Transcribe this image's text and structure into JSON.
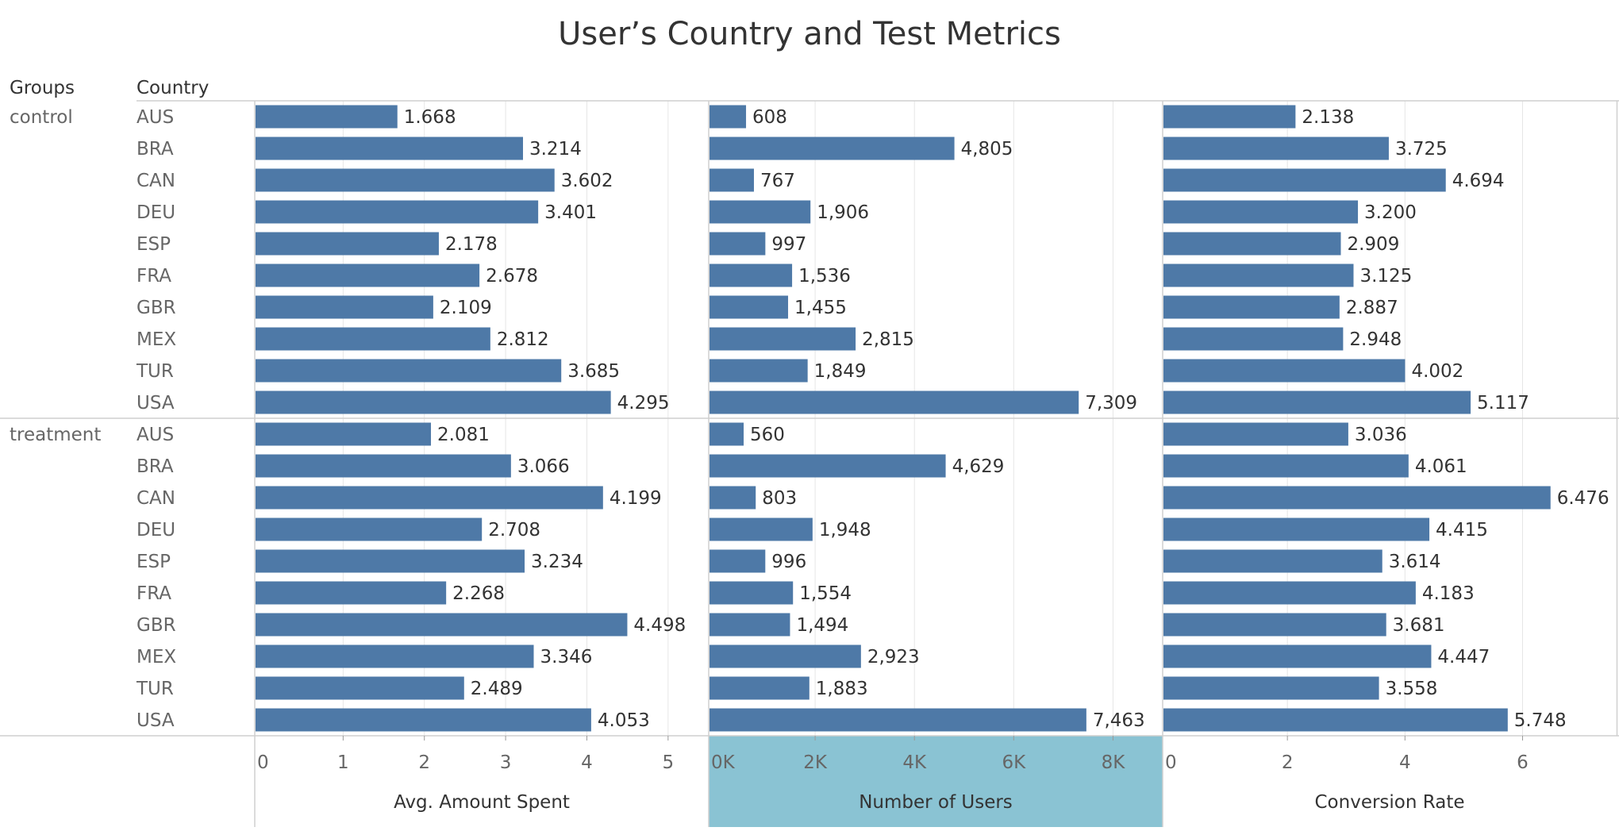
{
  "chart_data": {
    "type": "bar",
    "title": "User’s Country and Test Metrics",
    "row_headers": {
      "groups": "Groups",
      "country": "Country"
    },
    "groups": [
      "control",
      "treatment"
    ],
    "categories": [
      "AUS",
      "BRA",
      "CAN",
      "DEU",
      "ESP",
      "FRA",
      "GBR",
      "MEX",
      "TUR",
      "USA"
    ],
    "bar_color": "#4e79a7",
    "highlight_color": "#8ac3d3",
    "panels": [
      {
        "name": "Avg. Amount Spent",
        "xlim": [
          0,
          5.5
        ],
        "ticks": [
          {
            "v": 0,
            "label": "0"
          },
          {
            "v": 1,
            "label": "1"
          },
          {
            "v": 2,
            "label": "2"
          },
          {
            "v": 3,
            "label": "3"
          },
          {
            "v": 4,
            "label": "4"
          },
          {
            "v": 5,
            "label": "5"
          }
        ],
        "values": {
          "control": [
            1.668,
            3.214,
            3.602,
            3.401,
            2.178,
            2.678,
            2.109,
            2.812,
            3.685,
            4.295
          ],
          "treatment": [
            2.081,
            3.066,
            4.199,
            2.708,
            3.234,
            2.268,
            4.498,
            3.346,
            2.489,
            4.053
          ]
        },
        "labels": {
          "control": [
            "1.668",
            "3.214",
            "3.602",
            "3.401",
            "2.178",
            "2.678",
            "2.109",
            "2.812",
            "3.685",
            "4.295"
          ],
          "treatment": [
            "2.081",
            "3.066",
            "4.199",
            "2.708",
            "3.234",
            "2.268",
            "4.498",
            "3.346",
            "2.489",
            "4.053"
          ]
        },
        "highlighted": false
      },
      {
        "name": "Number of Users",
        "xlim": [
          0,
          9000
        ],
        "ticks": [
          {
            "v": 0,
            "label": "0K"
          },
          {
            "v": 2000,
            "label": "2K"
          },
          {
            "v": 4000,
            "label": "4K"
          },
          {
            "v": 6000,
            "label": "6K"
          },
          {
            "v": 8000,
            "label": "8K"
          }
        ],
        "values": {
          "control": [
            608,
            4805,
            767,
            1906,
            997,
            1536,
            1455,
            2815,
            1849,
            7309
          ],
          "treatment": [
            560,
            4629,
            803,
            1948,
            996,
            1554,
            1494,
            2923,
            1883,
            7463
          ]
        },
        "labels": {
          "control": [
            "608",
            "4,805",
            "767",
            "1,906",
            "997",
            "1,536",
            "1,455",
            "2,815",
            "1,849",
            "7,309"
          ],
          "treatment": [
            "560",
            "4,629",
            "803",
            "1,948",
            "996",
            "1,554",
            "1,494",
            "2,923",
            "1,883",
            "7,463"
          ]
        },
        "highlighted": true
      },
      {
        "name": "Conversion Rate",
        "xlim": [
          0,
          7.6
        ],
        "ticks": [
          {
            "v": 0,
            "label": "0"
          },
          {
            "v": 2,
            "label": "2"
          },
          {
            "v": 4,
            "label": "4"
          },
          {
            "v": 6,
            "label": "6"
          }
        ],
        "values": {
          "control": [
            2.138,
            3.725,
            4.694,
            3.2,
            2.909,
            3.125,
            2.887,
            2.948,
            4.002,
            5.117
          ],
          "treatment": [
            3.036,
            4.061,
            6.476,
            4.415,
            3.614,
            4.183,
            3.681,
            4.447,
            3.558,
            5.748
          ]
        },
        "labels": {
          "control": [
            "2.138",
            "3.725",
            "4.694",
            "3.200",
            "2.909",
            "3.125",
            "2.887",
            "2.948",
            "4.002",
            "5.117"
          ],
          "treatment": [
            "3.036",
            "4.061",
            "6.476",
            "4.415",
            "3.614",
            "4.183",
            "3.681",
            "4.447",
            "3.558",
            "5.748"
          ]
        },
        "highlighted": false
      }
    ]
  }
}
